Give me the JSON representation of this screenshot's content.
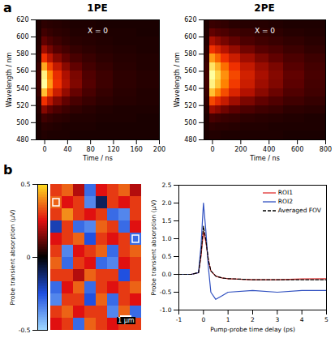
{
  "chart_data": [
    {
      "panel": "a",
      "type": "heatmap",
      "title": "1PE",
      "annotation": "X = 0",
      "x_label": "Time / ns",
      "y_label": "Wavelength / nm",
      "xlim": [
        -15,
        200
      ],
      "xticks": [
        0,
        40,
        80,
        120,
        160,
        200
      ],
      "ylim": [
        480,
        620
      ],
      "yticks": [
        480,
        500,
        520,
        540,
        560,
        580,
        600,
        620
      ],
      "x_bins": [
        -15,
        -5,
        5,
        15,
        30,
        45,
        65,
        90,
        120,
        160,
        200
      ],
      "y_bins": [
        480,
        490,
        500,
        510,
        520,
        530,
        540,
        550,
        560,
        570,
        580,
        590,
        600,
        610,
        620
      ],
      "values": [
        [
          0.0,
          0.02,
          0.01,
          0.01,
          0.01,
          0.0,
          0.0,
          0.0,
          0.0,
          0.0
        ],
        [
          0.0,
          0.04,
          0.03,
          0.02,
          0.01,
          0.01,
          0.01,
          0.0,
          0.0,
          0.0
        ],
        [
          0.01,
          0.1,
          0.07,
          0.05,
          0.04,
          0.02,
          0.02,
          0.01,
          0.01,
          0.0
        ],
        [
          0.03,
          0.25,
          0.18,
          0.13,
          0.09,
          0.06,
          0.04,
          0.02,
          0.01,
          0.01
        ],
        [
          0.05,
          0.5,
          0.36,
          0.25,
          0.18,
          0.12,
          0.08,
          0.05,
          0.03,
          0.02
        ],
        [
          0.08,
          0.8,
          0.58,
          0.4,
          0.28,
          0.19,
          0.12,
          0.07,
          0.04,
          0.02
        ],
        [
          0.1,
          1.0,
          0.72,
          0.5,
          0.35,
          0.24,
          0.15,
          0.09,
          0.05,
          0.03
        ],
        [
          0.1,
          0.95,
          0.68,
          0.48,
          0.33,
          0.23,
          0.14,
          0.09,
          0.05,
          0.03
        ],
        [
          0.08,
          0.75,
          0.54,
          0.38,
          0.26,
          0.18,
          0.11,
          0.07,
          0.04,
          0.02
        ],
        [
          0.05,
          0.5,
          0.36,
          0.25,
          0.18,
          0.12,
          0.08,
          0.05,
          0.03,
          0.02
        ],
        [
          0.03,
          0.3,
          0.22,
          0.15,
          0.11,
          0.07,
          0.05,
          0.03,
          0.02,
          0.01
        ],
        [
          0.02,
          0.18,
          0.13,
          0.09,
          0.06,
          0.04,
          0.03,
          0.02,
          0.01,
          0.01
        ],
        [
          0.01,
          0.1,
          0.07,
          0.05,
          0.04,
          0.02,
          0.02,
          0.01,
          0.01,
          0.0
        ],
        [
          0.01,
          0.05,
          0.04,
          0.03,
          0.02,
          0.01,
          0.01,
          0.0,
          0.0,
          0.0
        ]
      ]
    },
    {
      "type": "heatmap",
      "title": "2PE",
      "annotation": "X = 0",
      "x_label": "Time / ns",
      "y_label": "Wavelength / nm",
      "xlim": [
        -60,
        800
      ],
      "xticks": [
        0,
        200,
        400,
        600,
        800
      ],
      "ylim": [
        480,
        620
      ],
      "yticks": [
        480,
        500,
        520,
        540,
        560,
        580,
        600,
        620
      ],
      "x_bins": [
        -60,
        -20,
        20,
        60,
        120,
        200,
        300,
        400,
        500,
        650,
        800
      ],
      "y_bins": [
        480,
        490,
        500,
        510,
        520,
        530,
        540,
        550,
        560,
        570,
        580,
        590,
        600,
        610,
        620
      ],
      "values": [
        [
          0.0,
          0.02,
          0.02,
          0.01,
          0.01,
          0.01,
          0.01,
          0.01,
          0.0,
          0.0
        ],
        [
          0.01,
          0.05,
          0.04,
          0.04,
          0.03,
          0.02,
          0.02,
          0.01,
          0.01,
          0.01
        ],
        [
          0.01,
          0.12,
          0.1,
          0.08,
          0.07,
          0.05,
          0.04,
          0.03,
          0.02,
          0.01
        ],
        [
          0.03,
          0.3,
          0.26,
          0.21,
          0.17,
          0.13,
          0.1,
          0.08,
          0.05,
          0.04
        ],
        [
          0.06,
          0.55,
          0.47,
          0.39,
          0.3,
          0.23,
          0.18,
          0.14,
          0.1,
          0.07
        ],
        [
          0.08,
          0.8,
          0.68,
          0.56,
          0.44,
          0.34,
          0.26,
          0.2,
          0.14,
          0.1
        ],
        [
          0.1,
          0.95,
          0.81,
          0.67,
          0.52,
          0.4,
          0.3,
          0.24,
          0.17,
          0.11
        ],
        [
          0.1,
          1.0,
          0.85,
          0.7,
          0.55,
          0.42,
          0.32,
          0.25,
          0.18,
          0.12
        ],
        [
          0.09,
          0.9,
          0.77,
          0.63,
          0.5,
          0.38,
          0.29,
          0.23,
          0.16,
          0.11
        ],
        [
          0.07,
          0.72,
          0.61,
          0.5,
          0.4,
          0.3,
          0.23,
          0.18,
          0.13,
          0.09
        ],
        [
          0.05,
          0.5,
          0.43,
          0.35,
          0.28,
          0.21,
          0.16,
          0.13,
          0.09,
          0.06
        ],
        [
          0.03,
          0.32,
          0.27,
          0.22,
          0.18,
          0.13,
          0.1,
          0.08,
          0.06,
          0.04
        ],
        [
          0.02,
          0.18,
          0.15,
          0.13,
          0.1,
          0.08,
          0.06,
          0.05,
          0.03,
          0.02
        ],
        [
          0.01,
          0.08,
          0.07,
          0.06,
          0.04,
          0.03,
          0.03,
          0.02,
          0.01,
          0.01
        ]
      ]
    },
    {
      "panel": "b",
      "type": "heatmap",
      "tick_labels": false,
      "scale_bar": "1 µm",
      "colorbar": {
        "label": "Probe transient absorption (µV)",
        "range": [
          -0.5,
          0.5
        ],
        "ticks": [
          -0.5,
          0,
          0.5
        ]
      },
      "values": [
        [
          0.3,
          0.35,
          0.2,
          -0.3,
          0.25,
          0.3,
          0.35,
          0.2
        ],
        [
          0.35,
          0.25,
          0.3,
          -0.35,
          -0.1,
          0.3,
          0.25,
          0.3
        ],
        [
          0.3,
          0.4,
          0.3,
          0.25,
          0.3,
          -0.3,
          -0.35,
          0.3
        ],
        [
          -0.2,
          0.3,
          -0.3,
          -0.35,
          0.35,
          0.3,
          -0.3,
          0.25
        ],
        [
          0.25,
          0.3,
          0.35,
          -0.25,
          0.3,
          0.25,
          0.3,
          -0.3
        ],
        [
          0.3,
          -0.35,
          0.25,
          0.3,
          0.35,
          -0.3,
          0.3,
          0.35
        ],
        [
          0.35,
          -0.3,
          0.3,
          0.25,
          -0.3,
          -0.35,
          0.25,
          0.3
        ],
        [
          0.3,
          0.3,
          0.2,
          0.35,
          0.3,
          0.3,
          -0.25,
          0.3
        ],
        [
          -0.3,
          0.25,
          0.35,
          -0.3,
          0.3,
          0.25,
          0.3,
          0.35
        ],
        [
          -0.35,
          0.3,
          0.3,
          -0.25,
          0.35,
          -0.3,
          0.3,
          0.25
        ],
        [
          0.3,
          0.35,
          0.25,
          0.3,
          0.3,
          -0.35,
          0.35,
          -0.3
        ],
        [
          0.25,
          0.3,
          -0.3,
          0.35,
          0.3,
          0.25,
          0.3,
          0.3
        ]
      ],
      "rois": [
        {
          "row": 1,
          "col": 0
        },
        {
          "row": 4,
          "col": 7
        }
      ]
    },
    {
      "type": "line",
      "x_label": "Pump-probe time delay (ps)",
      "y_label": "Probe transient absorption (µV)",
      "xlim": [
        -1,
        5
      ],
      "xticks": [
        -1,
        0,
        1,
        2,
        3,
        4,
        5
      ],
      "ylim": [
        -1.0,
        2.5
      ],
      "yticks": [
        {
          "value": -1.0,
          "label": "-1.0"
        },
        {
          "value": -0.5,
          "label": "-0.5"
        },
        {
          "value": 0,
          "label": "0.0"
        },
        {
          "value": 0.5,
          "label": "0.5"
        },
        {
          "value": 1.0,
          "label": "1.0"
        },
        {
          "value": 1.5,
          "label": "1.5"
        },
        {
          "value": 2.0,
          "label": "2.0"
        },
        {
          "value": 2.5,
          "label": "2.5"
        }
      ],
      "legend": "top-right",
      "x": [
        -1,
        -0.5,
        -0.2,
        -0.1,
        0,
        0.1,
        0.2,
        0.3,
        0.5,
        0.75,
        1,
        2,
        3,
        4,
        5
      ],
      "series": [
        {
          "name": "ROI1",
          "color": "#e03030",
          "line_style": "solid",
          "values": [
            0,
            0,
            0.05,
            0.5,
            1.2,
            0.9,
            0.4,
            0.1,
            -0.05,
            -0.1,
            -0.12,
            -0.15,
            -0.15,
            -0.13,
            -0.12
          ]
        },
        {
          "name": "ROI2",
          "color": "#3050c0",
          "line_style": "solid",
          "values": [
            0,
            0,
            0.05,
            0.8,
            2.0,
            1.2,
            0.2,
            -0.5,
            -0.7,
            -0.6,
            -0.5,
            -0.45,
            -0.5,
            -0.45,
            -0.45
          ]
        },
        {
          "name": "Averaged FOV",
          "color": "#000000",
          "line_style": "dashed",
          "values": [
            0,
            0,
            0.05,
            0.55,
            1.35,
            0.95,
            0.4,
            0.1,
            -0.05,
            -0.1,
            -0.12,
            -0.15,
            -0.15,
            -0.15,
            -0.15
          ]
        }
      ]
    }
  ]
}
